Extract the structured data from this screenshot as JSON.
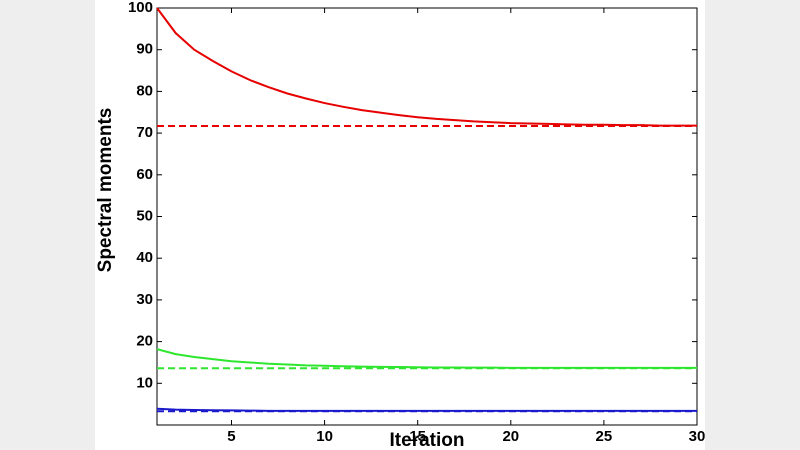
{
  "chart_data": {
    "type": "line",
    "x_label": "Iteration",
    "y_label": "Spectral moments",
    "x": [
      1,
      2,
      3,
      4,
      5,
      6,
      7,
      8,
      9,
      10,
      11,
      12,
      13,
      14,
      15,
      16,
      17,
      18,
      19,
      20,
      21,
      22,
      23,
      24,
      25,
      26,
      27,
      28,
      29,
      30
    ],
    "series": [
      {
        "color": "#e60000",
        "style": "solid",
        "values": [
          100,
          94,
          90,
          87.3,
          84.8,
          82.7,
          81,
          79.5,
          78.3,
          77.2,
          76.3,
          75.5,
          74.9,
          74.3,
          73.8,
          73.4,
          73.1,
          72.8,
          72.6,
          72.4,
          72.3,
          72.2,
          72.1,
          72,
          72,
          71.9,
          71.9,
          71.8,
          71.8,
          71.8
        ]
      },
      {
        "color": "#e60000",
        "style": "dashed",
        "values": [
          71.7,
          71.7,
          71.7,
          71.7,
          71.7,
          71.7,
          71.7,
          71.7,
          71.7,
          71.7,
          71.7,
          71.7,
          71.7,
          71.7,
          71.7,
          71.7,
          71.7,
          71.7,
          71.7,
          71.7,
          71.7,
          71.7,
          71.7,
          71.7,
          71.7,
          71.7,
          71.7,
          71.7,
          71.7,
          71.7
        ]
      },
      {
        "color": "#2ee62e",
        "style": "solid",
        "values": [
          18.2,
          17,
          16.3,
          15.8,
          15.3,
          15,
          14.7,
          14.5,
          14.3,
          14.2,
          14.1,
          14,
          13.95,
          13.9,
          13.85,
          13.8,
          13.8,
          13.75,
          13.75,
          13.7,
          13.7,
          13.7,
          13.7,
          13.7,
          13.7,
          13.7,
          13.7,
          13.7,
          13.7,
          13.7
        ]
      },
      {
        "color": "#2ee62e",
        "style": "dashed",
        "values": [
          13.6,
          13.6,
          13.6,
          13.6,
          13.6,
          13.6,
          13.6,
          13.6,
          13.6,
          13.6,
          13.6,
          13.6,
          13.6,
          13.6,
          13.6,
          13.6,
          13.6,
          13.6,
          13.6,
          13.6,
          13.6,
          13.6,
          13.6,
          13.6,
          13.6,
          13.6,
          13.6,
          13.6,
          13.6,
          13.6
        ]
      },
      {
        "color": "#1a1acc",
        "style": "solid",
        "values": [
          3.9,
          3.7,
          3.6,
          3.55,
          3.5,
          3.45,
          3.4,
          3.4,
          3.4,
          3.4,
          3.4,
          3.4,
          3.4,
          3.4,
          3.4,
          3.4,
          3.4,
          3.4,
          3.4,
          3.4,
          3.4,
          3.4,
          3.4,
          3.4,
          3.4,
          3.4,
          3.4,
          3.4,
          3.4,
          3.4
        ]
      },
      {
        "color": "#1a1acc",
        "style": "dashed",
        "values": [
          3.3,
          3.3,
          3.3,
          3.3,
          3.3,
          3.3,
          3.3,
          3.3,
          3.3,
          3.3,
          3.3,
          3.3,
          3.3,
          3.3,
          3.3,
          3.3,
          3.3,
          3.3,
          3.3,
          3.3,
          3.3,
          3.3,
          3.3,
          3.3,
          3.3,
          3.3,
          3.3,
          3.3,
          3.3,
          3.3
        ]
      }
    ],
    "xlim": [
      1,
      30
    ],
    "xticks": [
      5,
      10,
      15,
      20,
      25,
      30
    ],
    "ylim": [
      0,
      100
    ],
    "yticks": [
      10,
      20,
      30,
      40,
      50,
      60,
      70,
      80,
      90,
      100
    ]
  }
}
